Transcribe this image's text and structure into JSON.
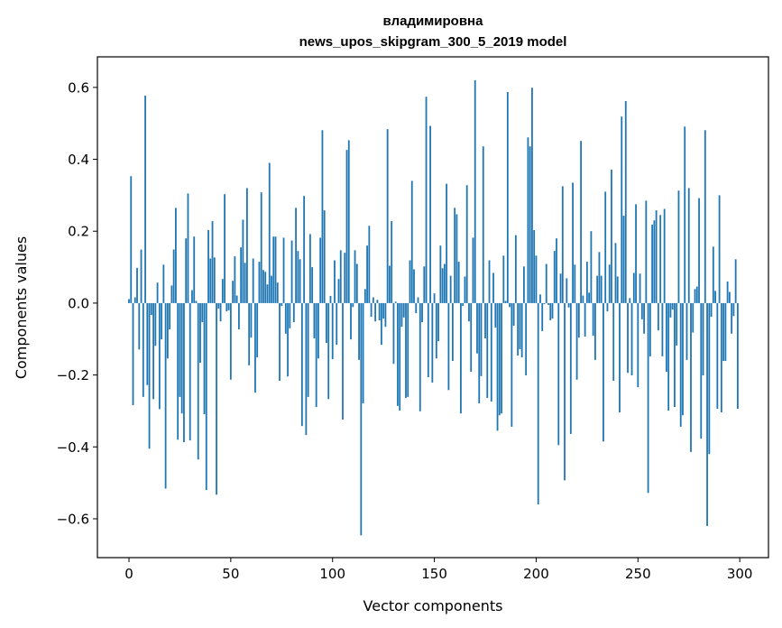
{
  "chart_data": {
    "type": "bar",
    "title": [
      "владимировна",
      "news_upos_skipgram_300_5_2019 model"
    ],
    "xlabel": "Vector components",
    "ylabel": "Components values",
    "xlim": [
      -15.5,
      314.1
    ],
    "ylim": [
      -0.708,
      0.685
    ],
    "xticks": [
      0,
      50,
      100,
      150,
      200,
      250,
      300
    ],
    "xtick_labels": [
      "0",
      "50",
      "100",
      "150",
      "200",
      "250",
      "300"
    ],
    "yticks": [
      -0.6,
      -0.4,
      -0.2,
      0.0,
      0.2,
      0.4,
      0.6
    ],
    "ytick_labels": [
      "−0.6",
      "−0.4",
      "−0.2",
      "0.0",
      "0.2",
      "0.4",
      "0.6"
    ],
    "grid": false,
    "bar_color": "#1f77b4",
    "bar_width": 0.8,
    "values": [
      0.011,
      0.353,
      -0.284,
      0.016,
      0.098,
      -0.129,
      0.149,
      -0.261,
      0.577,
      -0.228,
      -0.405,
      -0.033,
      -0.267,
      -0.119,
      0.057,
      -0.295,
      -0.101,
      0.107,
      -0.516,
      -0.154,
      -0.073,
      0.049,
      0.149,
      0.265,
      -0.38,
      -0.261,
      -0.307,
      -0.387,
      0.18,
      0.305,
      -0.382,
      0.036,
      0.185,
      0.006,
      -0.435,
      -0.166,
      -0.053,
      -0.309,
      -0.52,
      0.203,
      0.124,
      0.228,
      0.127,
      -0.533,
      -0.015,
      -0.051,
      0.067,
      0.303,
      -0.023,
      -0.02,
      -0.213,
      0.062,
      0.13,
      0.021,
      -0.073,
      0.155,
      0.232,
      0.112,
      0.32,
      -0.173,
      -0.096,
      0.124,
      -0.249,
      -0.151,
      0.115,
      0.308,
      0.092,
      0.087,
      0.052,
      0.39,
      0.076,
      0.185,
      0.185,
      0.057,
      -0.216,
      -0.008,
      0.182,
      -0.085,
      -0.204,
      -0.07,
      0.174,
      -0.053,
      0.265,
      0.145,
      0.122,
      -0.342,
      0.298,
      -0.367,
      -0.261,
      0.192,
      0.1,
      -0.098,
      -0.289,
      -0.154,
      0.182,
      0.481,
      0.258,
      -0.111,
      -0.267,
      0.02,
      -0.156,
      0.119,
      -0.116,
      0.067,
      0.147,
      -0.324,
      0.14,
      0.426,
      0.453,
      -0.101,
      -0.011,
      0.147,
      0.109,
      -0.158,
      -0.646,
      -0.279,
      0.039,
      0.16,
      0.215,
      -0.038,
      0.016,
      -0.051,
      0.009,
      -0.048,
      -0.116,
      -0.043,
      -0.066,
      0.484,
      0.104,
      0.228,
      -0.169,
      0.004,
      -0.286,
      -0.299,
      -0.066,
      -0.04,
      -0.264,
      -0.261,
      0.119,
      0.34,
      0.094,
      -0.028,
      0.016,
      -0.301,
      -0.053,
      0.102,
      0.574,
      -0.206,
      0.493,
      -0.221,
      0.027,
      -0.154,
      -0.106,
      0.16,
      0.097,
      0.109,
      0.332,
      -0.242,
      0.076,
      -0.161,
      0.265,
      0.247,
      0.115,
      -0.307,
      -0.008,
      0.074,
      0.328,
      -0.051,
      -0.191,
      0.182,
      0.62,
      -0.14,
      -0.279,
      -0.203,
      0.436,
      -0.098,
      -0.264,
      0.119,
      -0.274,
      0.084,
      -0.068,
      -0.355,
      -0.312,
      -0.307,
      0.132,
      0.006,
      0.587,
      -0.011,
      -0.344,
      -0.063,
      0.189,
      -0.146,
      -0.128,
      -0.151,
      0.102,
      -0.201,
      0.461,
      0.436,
      0.599,
      0.203,
      0.132,
      -0.56,
      0.024,
      -0.078,
      -0.003,
      0.109,
      -0.005,
      -0.048,
      -0.043,
      0.145,
      0.18,
      -0.395,
      0.082,
      0.325,
      -0.493,
      0.069,
      -0.012,
      -0.364,
      0.335,
      0.107,
      -0.213,
      -0.096,
      0.451,
      0.021,
      -0.093,
      0.115,
      0.029,
      0.2,
      -0.091,
      -0.158,
      0.076,
      0.142,
      0.076,
      -0.385,
      0.31,
      -0.023,
      0.107,
      0.371,
      -0.216,
      0.167,
      0.074,
      -0.304,
      0.519,
      0.243,
      0.562,
      -0.194,
      0.014,
      -0.201,
      0.084,
      0.275,
      -0.234,
      0.082,
      -0.045,
      -0.085,
      0.285,
      -0.528,
      -0.148,
      0.218,
      0.23,
      0.258,
      -0.076,
      0.245,
      -0.148,
      0.262,
      -0.191,
      -0.299,
      -0.04,
      -0.018,
      -0.289,
      -0.118,
      0.313,
      -0.344,
      -0.312,
      0.491,
      -0.158,
      0.32,
      -0.414,
      -0.082,
      0.039,
      0.046,
      0.292,
      -0.377,
      -0.201,
      0.481,
      -0.62,
      -0.42,
      -0.038,
      0.157,
      0.034,
      -0.294,
      0.3,
      -0.304,
      -0.161,
      -0.161,
      0.06,
      0.031,
      -0.085,
      -0.036,
      0.122,
      -0.294
    ]
  }
}
